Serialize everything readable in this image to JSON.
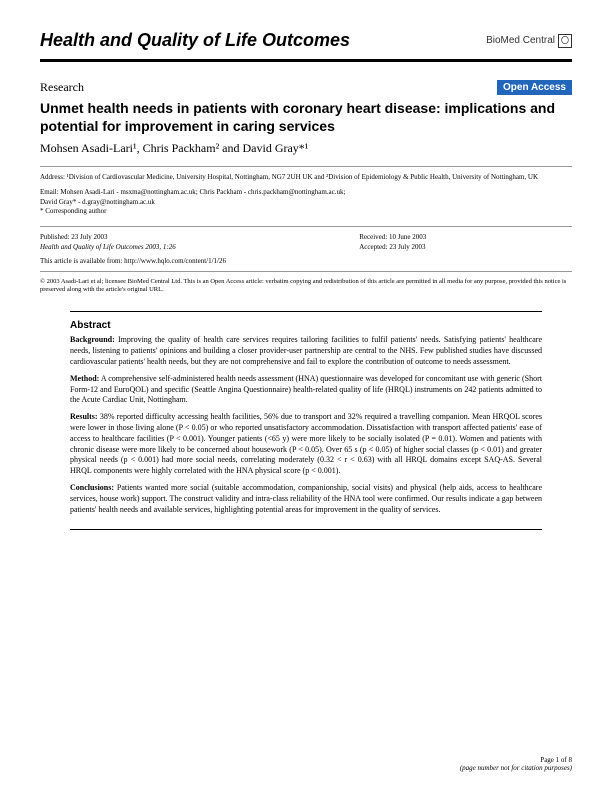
{
  "journal": {
    "title": "Health and Quality of Life Outcomes",
    "publisher": "BioMed Central"
  },
  "article": {
    "type": "Research",
    "access_badge": "Open Access",
    "title": "Unmet health needs in patients with coronary heart disease: implications and potential for improvement in caring services",
    "authors_html": "Mohsen Asadi-Lari¹, Chris Packham² and David Gray*¹"
  },
  "address": "Address: ¹Division of Cardiovascular Medicine, University Hospital, Nottingham, NG7 2UH UK and ²Division of Epidemiology & Public Health, University of Nottingham, UK",
  "emails": {
    "line1": "Email: Mohsen Asadi-Lari - msxma@nottingham.ac.uk; Chris Packham - chris.packham@nottingham.ac.uk;",
    "line2": "David Gray* - d.gray@nottingham.ac.uk",
    "corresponding": "* Corresponding author"
  },
  "dates": {
    "published": "Published: 23 July 2003",
    "received": "Received: 10 June 2003",
    "accepted": "Accepted: 23 July 2003"
  },
  "reference": "Health and Quality of Life Outcomes 2003, 1:26",
  "availability": "This article is available from: http://www.hqlo.com/content/1/1/26",
  "copyright": "© 2003 Asadi-Lari et al; licensee BioMed Central Ltd. This is an Open Access article: verbatim copying and redistribution of this article are permitted in all media for any purpose, provided this notice is preserved along with the article's original URL.",
  "abstract": {
    "heading": "Abstract",
    "background_label": "Background:",
    "background": " Improving the quality of health care services requires tailoring facilities to fulfil patients' needs. Satisfying patients' healthcare needs, listening to patients' opinions and building a closer provider-user partnership are central to the NHS. Few published studies have discussed cardiovascular patients' health needs, but they are not comprehensive and fail to explore the contribution of outcome to needs assessment.",
    "method_label": "Method:",
    "method": " A comprehensive self-administered health needs assessment (HNA) questionnaire was developed for concomitant use with generic (Short Form-12 and EuroQOL) and specific (Seattle Angina Questionnaire) health-related quality of life (HRQL) instruments on 242 patients admitted to the Acute Cardiac Unit, Nottingham.",
    "results_label": "Results:",
    "results": " 38% reported difficulty accessing health facilities, 56% due to transport and 32% required a travelling companion. Mean HRQOL scores were lower in those living alone (P < 0.05) or who reported unsatisfactory accommodation. Dissatisfaction with transport affected patients' ease of access to healthcare facilities (P < 0.001). Younger patients (<65 y) were more likely to be socially isolated (P = 0.01). Women and patients with chronic disease were more likely to be concerned about housework (P < 0.05). Over 65 s (p < 0.05) of higher social classes (p < 0.01) and greater physical needs (p < 0.001) had more social needs, correlating moderately (0.32 < r < 0.63) with all HRQL domains except SAQ-AS. Several HRQL components were highly correlated with the HNA physical score (p < 0.001).",
    "conclusions_label": "Conclusions:",
    "conclusions": " Patients wanted more social (suitable accommodation, companionship, social visits) and physical (help aids, access to healthcare services, house work) support. The construct validity and intra-class reliability of the HNA tool were confirmed. Our results indicate a gap between patients' health needs and available services, highlighting potential areas for improvement in the quality of services."
  },
  "footer": {
    "page": "Page 1 of 8",
    "note": "(page number not for citation purposes)"
  },
  "colors": {
    "open_access_bg": "#2266bb",
    "text": "#000000",
    "rule_minor": "#999999"
  }
}
